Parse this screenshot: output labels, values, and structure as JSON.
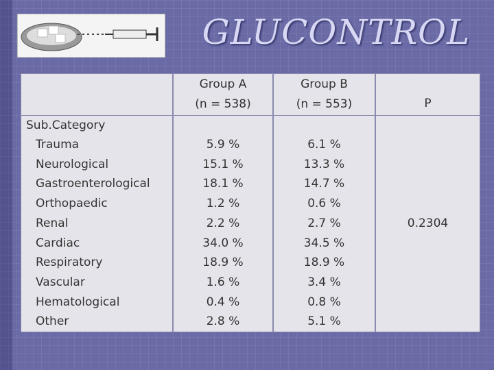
{
  "header": {
    "title": "GLUCONTROL"
  },
  "table": {
    "columns": [
      [
        "Group A",
        "(n = 538)"
      ],
      [
        "Group B",
        "(n = 553)"
      ],
      [
        "P"
      ]
    ],
    "category_heading": "Sub.Category",
    "rows": [
      {
        "category": "Trauma",
        "group_a": "5.9 %",
        "group_b": "6.1 %"
      },
      {
        "category": "Neurological",
        "group_a": "15.1 %",
        "group_b": "13.3 %"
      },
      {
        "category": "Gastroenterological",
        "group_a": "18.1 %",
        "group_b": "14.7 %"
      },
      {
        "category": "Orthopaedic",
        "group_a": "1.2 %",
        "group_b": "0.6 %"
      },
      {
        "category": "Renal",
        "group_a": "2.2 %",
        "group_b": "2.7 %"
      },
      {
        "category": "Cardiac",
        "group_a": "34.0 %",
        "group_b": "34.5 %"
      },
      {
        "category": "Respiratory",
        "group_a": "18.9 %",
        "group_b": "18.9 %"
      },
      {
        "category": "Vascular",
        "group_a": "1.6 %",
        "group_b": "3.4 %"
      },
      {
        "category": "Hematological",
        "group_a": "0.4 %",
        "group_b": "0.8 %"
      },
      {
        "category": "Other",
        "group_a": "2.8 %",
        "group_b": "5.1 %"
      }
    ],
    "p_value": "0.2304"
  }
}
